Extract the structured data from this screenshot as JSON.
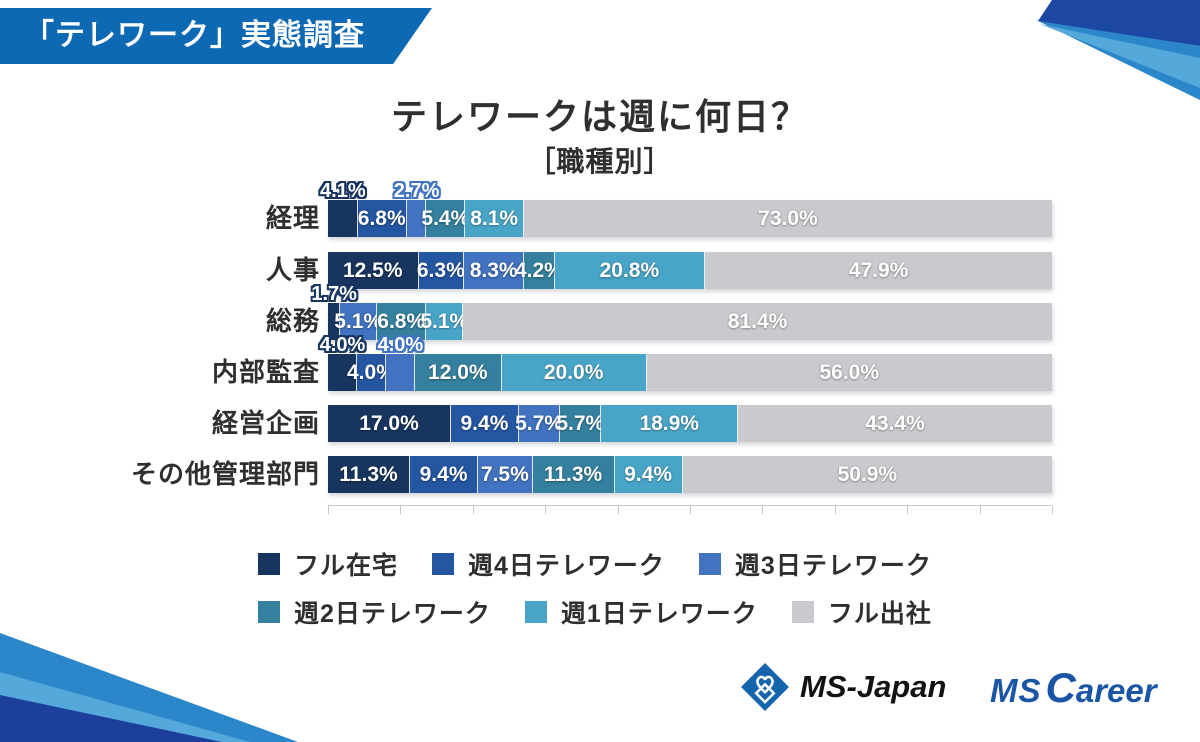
{
  "badge": {
    "label": "「テレワーク」実態調査"
  },
  "header": {
    "title": "テレワークは週に何日？",
    "subtitle": "［職種別］"
  },
  "chart_data": {
    "type": "bar",
    "variant": "horizontal-stacked",
    "unit": "%",
    "title": "テレワークは週に何日？",
    "subtitle": "［職種別］",
    "categories": [
      "経理",
      "人事",
      "総務",
      "内部監査",
      "経営企画",
      "その他管理部門"
    ],
    "series": [
      {
        "name": "フル在宅",
        "color": "#17355e",
        "values": [
          4.1,
          12.5,
          1.7,
          4.0,
          17.0,
          11.3
        ]
      },
      {
        "name": "週4日テレワーク",
        "color": "#2456a2",
        "values": [
          6.8,
          6.3,
          0,
          4.0,
          9.4,
          9.4
        ]
      },
      {
        "name": "週3日テレワーク",
        "color": "#4173c0",
        "values": [
          2.7,
          8.3,
          5.1,
          4.0,
          5.7,
          7.5
        ]
      },
      {
        "name": "週2日テレワーク",
        "color": "#34809e",
        "values": [
          5.4,
          4.2,
          6.8,
          12.0,
          5.7,
          11.3
        ]
      },
      {
        "name": "週1日テレワーク",
        "color": "#49a5c7",
        "values": [
          8.1,
          20.8,
          5.1,
          20.0,
          18.9,
          9.4
        ]
      },
      {
        "name": "フル出社",
        "color": "#c8cacd",
        "values": [
          73.0,
          47.9,
          81.4,
          56.0,
          43.4,
          50.9
        ]
      }
    ],
    "labels_above_by_category": [
      [
        0,
        2
      ],
      [],
      [
        0
      ],
      [
        0,
        2
      ],
      [],
      []
    ],
    "xlim": [
      0,
      100
    ],
    "grid": false,
    "axis_tick_count": 11,
    "legend_position": "bottom",
    "legend_rows": [
      [
        0,
        1,
        2
      ],
      [
        3,
        4,
        5
      ]
    ]
  },
  "footer": {
    "msjapan": "MS-Japan",
    "mscareer": {
      "ms": "MS",
      "c": "C",
      "areer": "areer"
    }
  },
  "colors": {
    "badge": "#0e69b4",
    "deco_dark": "#1c48a4",
    "deco_medium": "#2b86ca",
    "deco_light": "#55a9da",
    "deco_bottom_dark": "#1c3f9e",
    "text": "#2f2f2f",
    "axis": "#c9c9c9",
    "logo_blue": "#1a55a6"
  }
}
